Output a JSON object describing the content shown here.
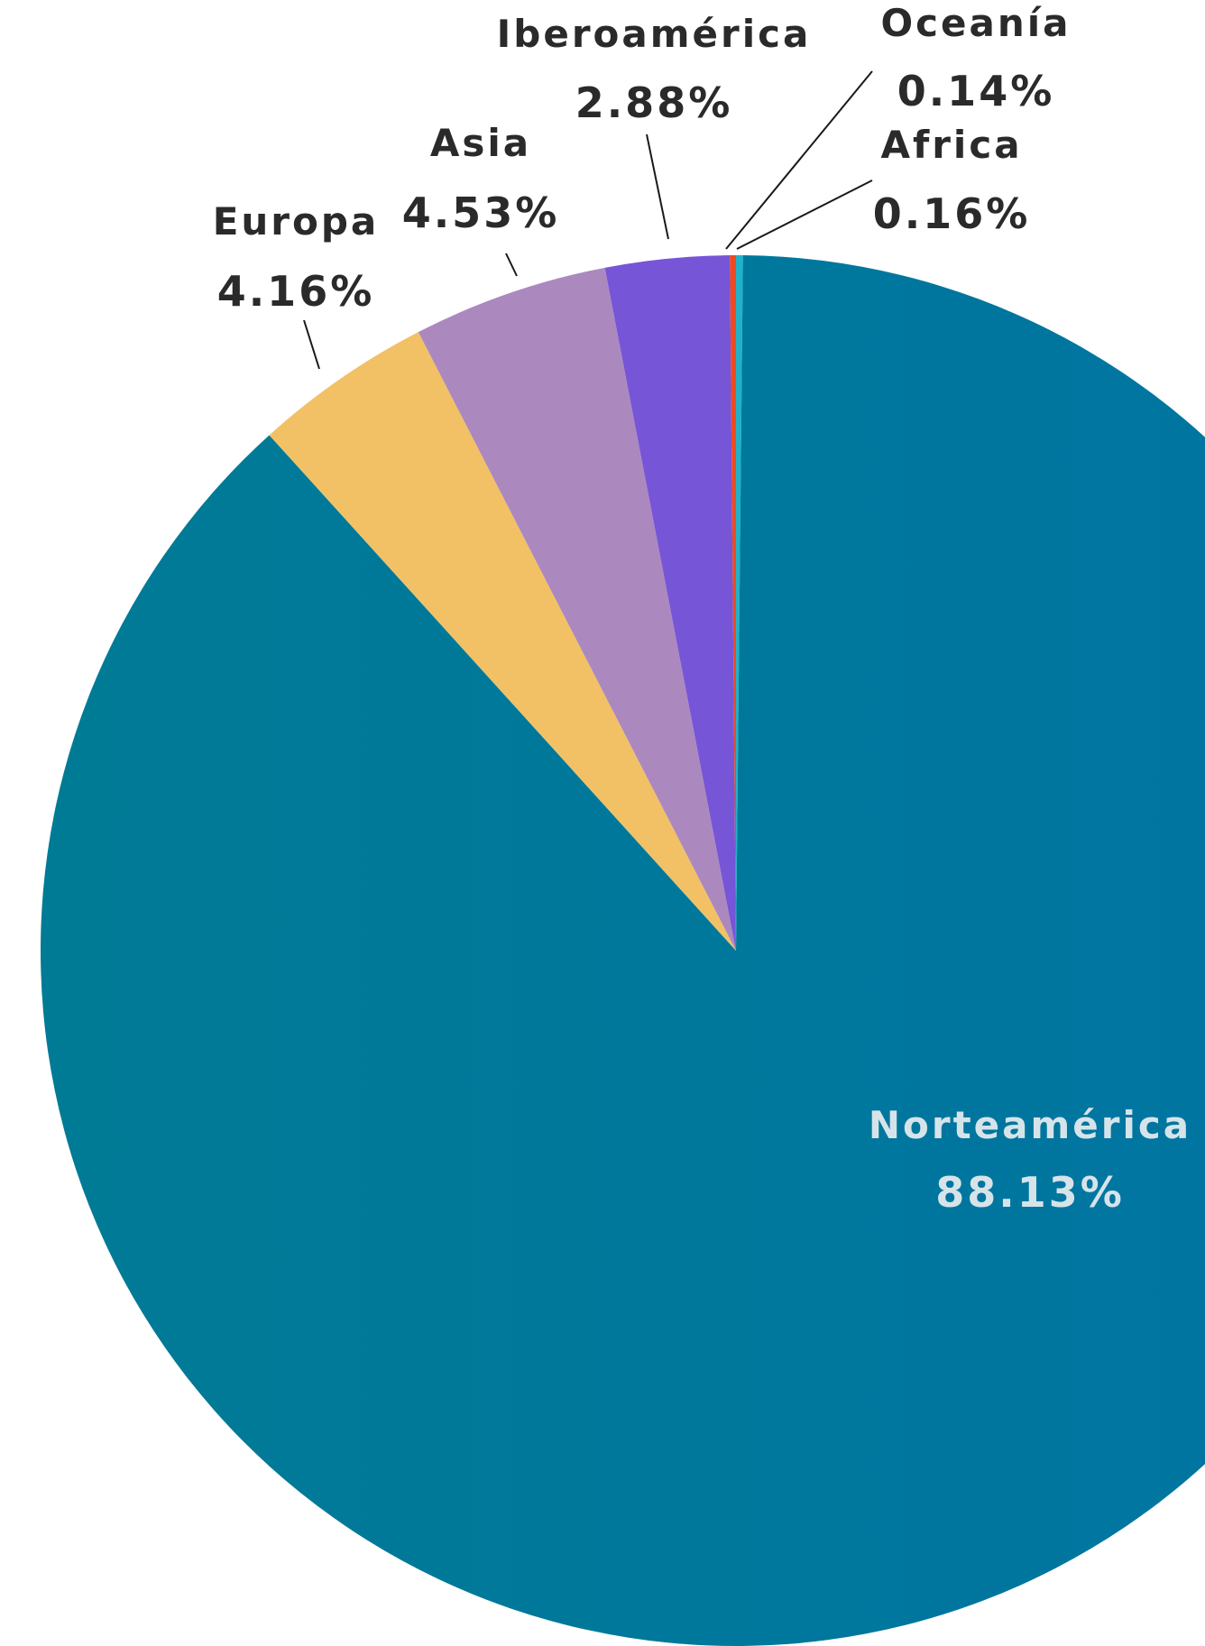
{
  "chart_data": {
    "type": "pie",
    "title": "",
    "slices": [
      {
        "label": "Norteamérica",
        "value_label": "88.13%",
        "value": 88.13,
        "color": "#007ba0"
      },
      {
        "label": "Europa",
        "value_label": "4.16%",
        "value": 4.16,
        "color": "#f2c166"
      },
      {
        "label": "Asia",
        "value_label": "4.53%",
        "value": 4.53,
        "color": "#ab89bf"
      },
      {
        "label": "Iberoamérica",
        "value_label": "2.88%",
        "value": 2.88,
        "color": "#7655d6"
      },
      {
        "label": "Oceanía",
        "value_label": "0.14%",
        "value": 0.14,
        "color": "#f0491f"
      },
      {
        "label": "Africa",
        "value_label": "0.16%",
        "value": 0.16,
        "color": "#1fb2c9"
      }
    ]
  }
}
